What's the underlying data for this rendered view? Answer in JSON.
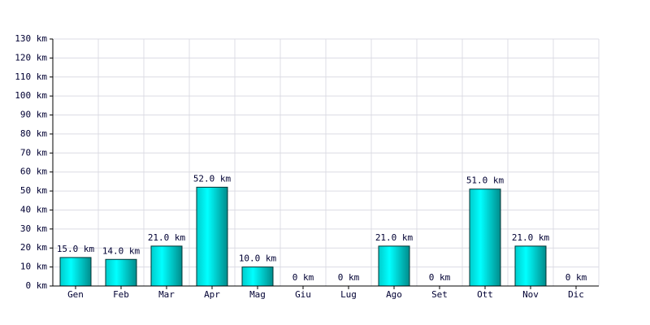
{
  "chart_data": {
    "type": "bar",
    "categories": [
      "Gen",
      "Feb",
      "Mar",
      "Apr",
      "Mag",
      "Giu",
      "Lug",
      "Ago",
      "Set",
      "Ott",
      "Nov",
      "Dic"
    ],
    "values": [
      15,
      14,
      21,
      52,
      10,
      0,
      0,
      21,
      0,
      51,
      21,
      0
    ],
    "value_labels": [
      "15.0 km",
      "14.0 km",
      "21.0 km",
      "52.0 km",
      "10.0 km",
      "0 km",
      "0 km",
      "21.0 km",
      "0 km",
      "51.0 km",
      "21.0 km",
      "0 km"
    ],
    "color": "#00cccc",
    "ylim": [
      0,
      130
    ],
    "yticks": [
      {
        "value": 0,
        "label": "0 km"
      },
      {
        "value": 10,
        "label": "10 km"
      },
      {
        "value": 20,
        "label": "20 km"
      },
      {
        "value": 30,
        "label": "30 km"
      },
      {
        "value": 40,
        "label": "40 km"
      },
      {
        "value": 50,
        "label": "50 km"
      },
      {
        "value": 60,
        "label": "60 km"
      },
      {
        "value": 70,
        "label": "70 km"
      },
      {
        "value": 80,
        "label": "80 km"
      },
      {
        "value": 90,
        "label": "90 km"
      },
      {
        "value": 100,
        "label": "100 km"
      },
      {
        "value": 110,
        "label": "110 km"
      },
      {
        "value": 120,
        "label": "120 km"
      },
      {
        "value": 130,
        "label": "130 km"
      }
    ],
    "grid": true
  }
}
